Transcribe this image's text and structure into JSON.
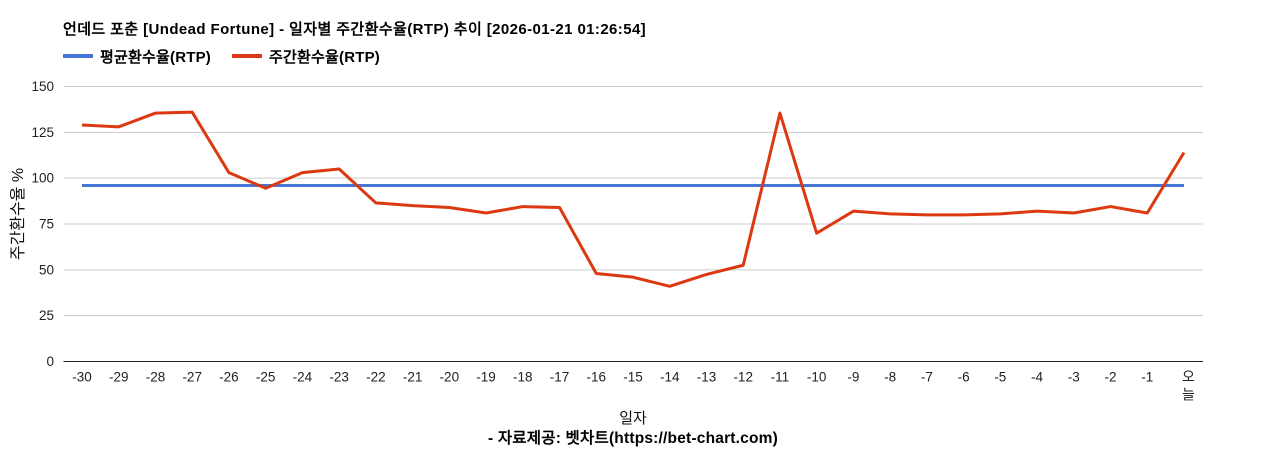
{
  "title": "언데드 포춘 [Undead Fortune] - 일자별 주간환수율(RTP) 추이 [2026-01-21 01:26:54]",
  "legend": [
    {
      "label": "평균환수율(RTP)",
      "color": "#4575d5"
    },
    {
      "label": "주간환수율(RTP)",
      "color": "#dc3912"
    }
  ],
  "footer": "- 자료제공: 벳차트(https://bet-chart.com)",
  "chart_data": {
    "type": "line",
    "title": "언데드 포춘 [Undead Fortune] - 일자별 주간환수율(RTP) 추이 [2026-01-21 01:26:54]",
    "categories": [
      "-30",
      "-29",
      "-28",
      "-27",
      "-26",
      "-25",
      "-24",
      "-23",
      "-22",
      "-21",
      "-20",
      "-19",
      "-18",
      "-17",
      "-16",
      "-15",
      "-14",
      "-13",
      "-12",
      "-11",
      "-10",
      "-9",
      "-8",
      "-7",
      "-6",
      "-5",
      "-4",
      "-3",
      "-2",
      "-1",
      "오늘"
    ],
    "series": [
      {
        "name": "평균환수율(RTP)",
        "color": "#4575d5",
        "values": [
          96,
          96,
          96,
          96,
          96,
          96,
          96,
          96,
          96,
          96,
          96,
          96,
          96,
          96,
          96,
          96,
          96,
          96,
          96,
          96,
          96,
          96,
          96,
          96,
          96,
          96,
          96,
          96,
          96,
          96,
          96
        ]
      },
      {
        "name": "주간환수율(RTP)",
        "color": "#dc3912",
        "values": [
          129,
          128,
          135.5,
          136,
          103,
          94.5,
          103,
          105,
          86.5,
          85,
          84,
          81,
          84.5,
          84,
          48,
          46,
          41,
          47.5,
          52.5,
          135.5,
          70,
          82,
          80.5,
          80,
          80,
          80.5,
          82,
          81,
          84.5,
          81,
          114
        ]
      }
    ],
    "xlabel": "일자",
    "ylabel": "주간환수율 %",
    "ylim": [
      0,
      150
    ],
    "yticks": [
      0,
      25,
      50,
      75,
      100,
      125,
      150
    ],
    "grid": true,
    "legend_position": "top"
  }
}
